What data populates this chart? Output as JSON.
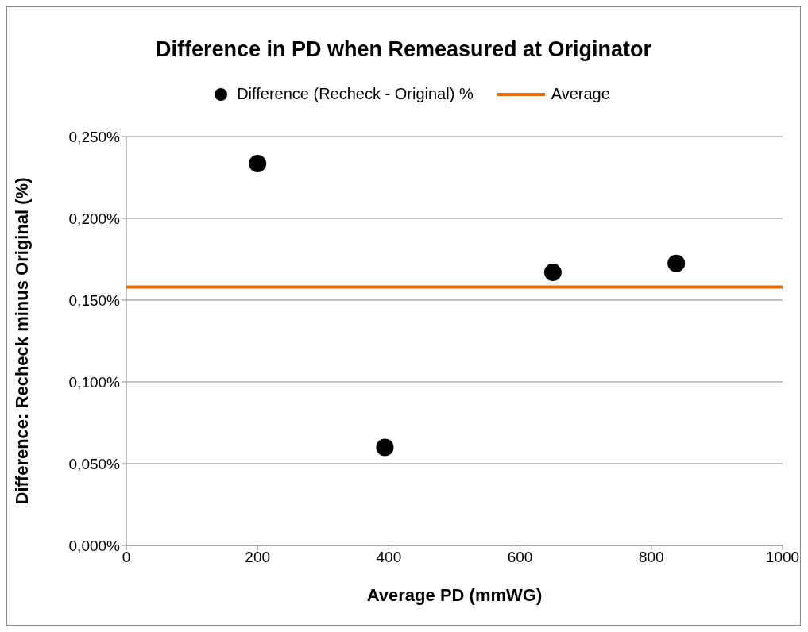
{
  "chart_data": {
    "type": "scatter",
    "title": "Difference in PD when Remeasured at Originator",
    "xlabel": "Average PD (mmWG)",
    "ylabel": "Difference: Recheck minus Original (%)",
    "series": [
      {
        "name": "Difference (Recheck - Original) %",
        "type": "scatter",
        "color": "#000000",
        "x": [
          200,
          394,
          650,
          838
        ],
        "values": [
          0.2335,
          0.06,
          0.167,
          0.1725
        ],
        "marker": "circle"
      },
      {
        "name": "Average",
        "type": "line",
        "color": "#e46c0a",
        "x": [
          0,
          1000
        ],
        "values": [
          0.158,
          0.158
        ],
        "marker": "none"
      }
    ],
    "xlim": [
      0,
      1000
    ],
    "xticks": [
      0,
      200,
      400,
      600,
      800,
      1000
    ],
    "ylim": [
      0,
      0.25
    ],
    "yticks": [
      {
        "value": 0,
        "label": "0,000%"
      },
      {
        "value": 0.05,
        "label": "0,050%"
      },
      {
        "value": 0.1,
        "label": "0,100%"
      },
      {
        "value": 0.15,
        "label": "0,150%"
      },
      {
        "value": 0.2,
        "label": "0,200%"
      },
      {
        "value": 0.25,
        "label": "0,250%"
      }
    ],
    "grid": "y",
    "legend": "top"
  }
}
